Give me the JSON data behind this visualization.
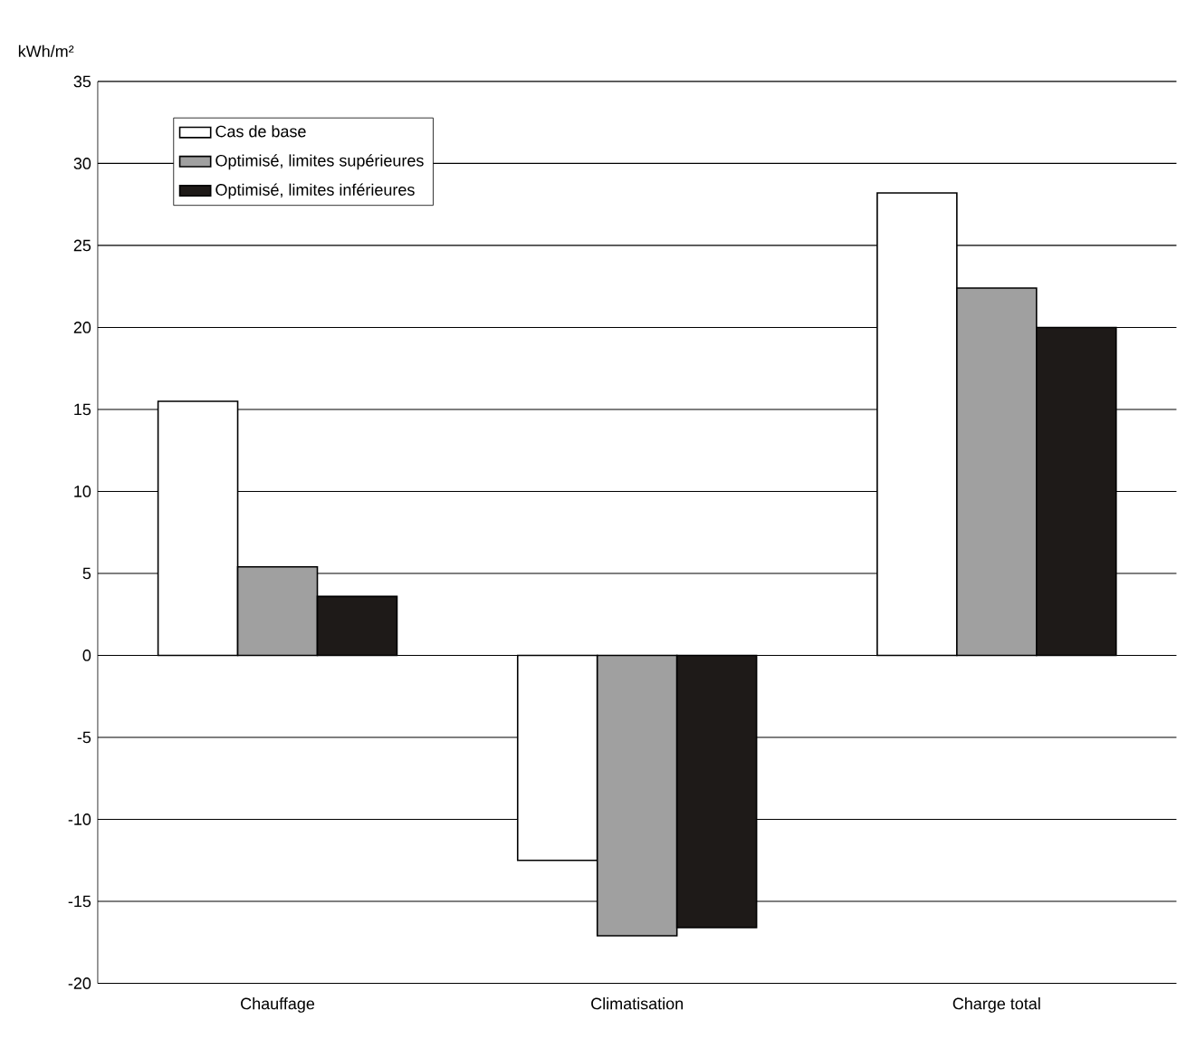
{
  "chart_data": {
    "type": "bar",
    "ylabel": "kWh/m²",
    "categories": [
      "Chauffage",
      "Climatisation",
      "Charge total"
    ],
    "series": [
      {
        "name": "Cas de base",
        "color": "#ffffff",
        "values": [
          15.5,
          -12.5,
          28.2
        ]
      },
      {
        "name": "Optimisé, limites supérieures",
        "color": "#a0a0a0",
        "values": [
          5.4,
          -17.1,
          22.4
        ]
      },
      {
        "name": "Optimisé, limites inférieures",
        "color": "#1e1a18",
        "values": [
          3.6,
          -16.6,
          20.0
        ]
      }
    ],
    "ylim": [
      -20,
      35
    ],
    "yticks": [
      -20,
      -15,
      -10,
      -5,
      0,
      5,
      10,
      15,
      20,
      25,
      30,
      35
    ],
    "grid": "y",
    "legend": "top left"
  }
}
